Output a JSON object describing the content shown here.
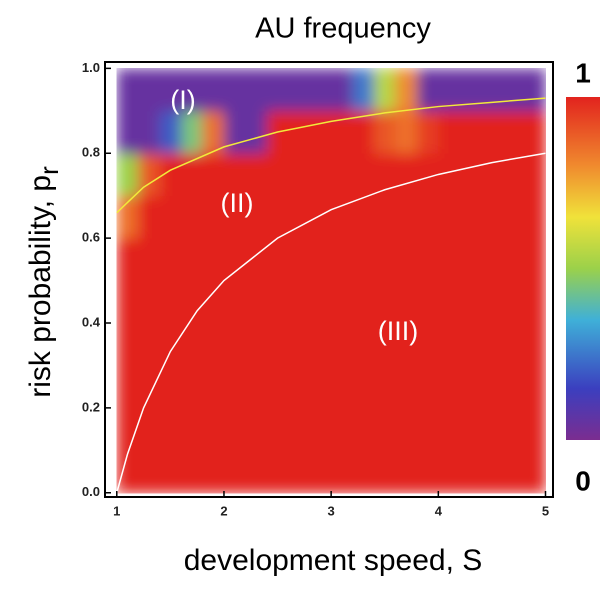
{
  "chart_data": {
    "type": "heatmap",
    "title": "AU frequency",
    "xlabel": "development speed, S",
    "ylabel": "risk probability,  p",
    "ylabel_subscript": "r",
    "xlim": [
      0.89,
      5.07
    ],
    "ylim": [
      -0.01,
      1.015
    ],
    "xticks": [
      1,
      2,
      3,
      4,
      5
    ],
    "yticks": [
      {
        "value": 0,
        "label": "0.0"
      },
      {
        "value": 0.2,
        "label": "0.2"
      },
      {
        "value": 0.4,
        "label": "0.4"
      },
      {
        "value": 0.6,
        "label": "0.6"
      },
      {
        "value": 0.8,
        "label": "0.8"
      },
      {
        "value": 1,
        "label": "1.0"
      }
    ],
    "x_edges": [
      1.0,
      1.2,
      1.4,
      1.6,
      1.8,
      2.0,
      2.2,
      2.4,
      2.6,
      2.8,
      3.0,
      3.2,
      3.4,
      3.6,
      3.8,
      4.0,
      4.2,
      4.4,
      4.6,
      4.8,
      5.0
    ],
    "y_edges": [
      0.0,
      0.1,
      0.2,
      0.3,
      0.4,
      0.5,
      0.6,
      0.7,
      0.8,
      0.9,
      1.0
    ],
    "z": [
      [
        1,
        1,
        1,
        1,
        1,
        1,
        1,
        1,
        1,
        1,
        1,
        1,
        1,
        1,
        1,
        1,
        1,
        1,
        1,
        1
      ],
      [
        1,
        1,
        1,
        1,
        1,
        1,
        1,
        1,
        1,
        1,
        1,
        1,
        1,
        1,
        1,
        1,
        1,
        1,
        1,
        1
      ],
      [
        1,
        1,
        1,
        1,
        1,
        1,
        1,
        1,
        1,
        1,
        1,
        1,
        1,
        1,
        1,
        1,
        1,
        1,
        1,
        1
      ],
      [
        1,
        1,
        1,
        1,
        1,
        1,
        1,
        1,
        1,
        1,
        1,
        1,
        1,
        1,
        1,
        1,
        1,
        1,
        1,
        1
      ],
      [
        1,
        1,
        1,
        1,
        1,
        1,
        1,
        1,
        1,
        1,
        1,
        1,
        1,
        1,
        1,
        1,
        1,
        1,
        1,
        1
      ],
      [
        1,
        1,
        1,
        1,
        1,
        1,
        1,
        1,
        1,
        1,
        1,
        1,
        1,
        1,
        1,
        1,
        1,
        1,
        1,
        1
      ],
      [
        0.85,
        1,
        1,
        1,
        1,
        1,
        1,
        1,
        1,
        1,
        1,
        1,
        1,
        1,
        1,
        1,
        1,
        1,
        1,
        1
      ],
      [
        0.5,
        0.9,
        1,
        1,
        1,
        1,
        1,
        1,
        1,
        1,
        1,
        1,
        1,
        1,
        1,
        1,
        1,
        1,
        1,
        1
      ],
      [
        0.05,
        0.05,
        0.2,
        0.45,
        0.85,
        0.05,
        0.05,
        1,
        1,
        1,
        1,
        1,
        0.9,
        0.85,
        0.95,
        1,
        1,
        1,
        1,
        1
      ],
      [
        0.05,
        0.05,
        0.05,
        0.05,
        0.05,
        0.05,
        0.05,
        0.05,
        0.05,
        0.05,
        0.05,
        0.25,
        0.55,
        0.8,
        0.05,
        0.05,
        0.05,
        0.05,
        0.05,
        0.05
      ]
    ],
    "colorscale": [
      {
        "value": 0,
        "color": "#7b2d90"
      },
      {
        "value": 0.15,
        "color": "#3b3fbf"
      },
      {
        "value": 0.35,
        "color": "#3fb0d8"
      },
      {
        "value": 0.5,
        "color": "#9bd14a"
      },
      {
        "value": 0.65,
        "color": "#f0e23a"
      },
      {
        "value": 0.8,
        "color": "#f08a2e"
      },
      {
        "value": 1,
        "color": "#e2231e"
      }
    ],
    "colorbar_ticks": [
      0,
      1
    ],
    "series": [
      {
        "color": "#f2ea3a",
        "x": [
          1,
          1.25,
          1.5,
          2,
          2.5,
          3,
          3.5,
          4,
          4.5,
          5
        ],
        "values": [
          0.66,
          0.72,
          0.76,
          0.815,
          0.85,
          0.875,
          0.895,
          0.91,
          0.92,
          0.93
        ]
      },
      {
        "color": "#ffffff",
        "x": [
          1,
          1.1,
          1.25,
          1.5,
          1.75,
          2,
          2.5,
          3,
          3.5,
          4,
          4.5,
          5
        ],
        "values": [
          0,
          0.091,
          0.2,
          0.333,
          0.429,
          0.5,
          0.6,
          0.667,
          0.714,
          0.75,
          0.778,
          0.8
        ]
      }
    ],
    "annotations": [
      "(I)",
      "(II)",
      "(III)"
    ]
  }
}
